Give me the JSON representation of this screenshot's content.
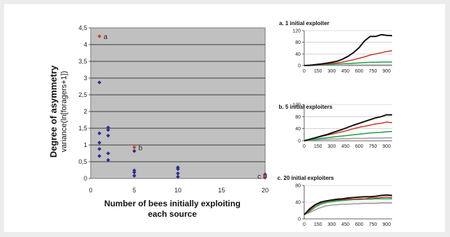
{
  "chart_data": [
    {
      "type": "scatter",
      "title": "",
      "ylabel": "Degree of asymmetry",
      "ylabel_sub": "variance(ln[foragers+1])",
      "xlabel_line1": "Number of bees initially exploiting",
      "xlabel_line2": "each source",
      "xlim": [
        0,
        20
      ],
      "ylim": [
        0,
        4.5
      ],
      "xticks": [
        "0",
        "5",
        "10",
        "15",
        "20"
      ],
      "yticks": [
        "0",
        "0,5",
        "1",
        "1,5",
        "2",
        "2,5",
        "3",
        "3,5",
        "4",
        "4,5"
      ],
      "grid": true,
      "background": "#c0c0c0",
      "colors": {
        "points": "#2b2b8f",
        "highlight": "#d0402a"
      },
      "points": [
        {
          "x": 1,
          "y": 2.87
        },
        {
          "x": 1,
          "y": 1.35
        },
        {
          "x": 1,
          "y": 1.07
        },
        {
          "x": 1,
          "y": 0.88
        },
        {
          "x": 1,
          "y": 0.67
        },
        {
          "x": 2,
          "y": 1.52
        },
        {
          "x": 2,
          "y": 1.45
        },
        {
          "x": 2,
          "y": 1.28
        },
        {
          "x": 2,
          "y": 0.75
        },
        {
          "x": 2,
          "y": 0.55
        },
        {
          "x": 5,
          "y": 0.82
        },
        {
          "x": 5,
          "y": 0.24
        },
        {
          "x": 5,
          "y": 0.18
        },
        {
          "x": 5,
          "y": 0.08
        },
        {
          "x": 10,
          "y": 0.33
        },
        {
          "x": 10,
          "y": 0.28
        },
        {
          "x": 10,
          "y": 0.15
        },
        {
          "x": 10,
          "y": 0.05
        },
        {
          "x": 20,
          "y": 0.12
        },
        {
          "x": 20,
          "y": 0.09
        },
        {
          "x": 20,
          "y": 0.05
        },
        {
          "x": 20,
          "y": 0.03
        }
      ],
      "highlighted": [
        {
          "x": 1,
          "y": 4.25,
          "label": "a"
        },
        {
          "x": 5,
          "y": 0.93,
          "label": "b"
        },
        {
          "x": 20,
          "y": 0.07,
          "label": "c"
        }
      ]
    },
    {
      "type": "line",
      "title": "a. 1 initial exploiter",
      "ylim": [
        0,
        120
      ],
      "yticks": [
        "0",
        "40",
        "80",
        "120"
      ],
      "xticks": [
        "0",
        "150",
        "300",
        "450",
        "600",
        "750",
        "900"
      ],
      "x": [
        0,
        60,
        120,
        180,
        240,
        300,
        360,
        420,
        480,
        540,
        600,
        660,
        720,
        780,
        840,
        900,
        960
      ],
      "series": [
        {
          "color": "#111111",
          "values": [
            0,
            1,
            3,
            5,
            8,
            11,
            15,
            22,
            32,
            45,
            62,
            85,
            100,
            100,
            106,
            104,
            103
          ]
        },
        {
          "color": "#c0392b",
          "values": [
            0,
            1,
            2,
            3,
            5,
            7,
            9,
            12,
            16,
            20,
            25,
            30,
            36,
            40,
            44,
            48,
            51
          ]
        },
        {
          "color": "#1e9e4a",
          "values": [
            0,
            0,
            1,
            2,
            3,
            4,
            5,
            6,
            7,
            8,
            9,
            10,
            11,
            11,
            12,
            12,
            12
          ]
        },
        {
          "color": "#9a9a9a",
          "values": [
            0,
            0,
            0,
            1,
            1,
            1,
            1,
            1,
            2,
            2,
            2,
            2,
            2,
            2,
            2,
            2,
            2
          ]
        }
      ]
    },
    {
      "type": "line",
      "title": "b. 5 initial exploiters",
      "ylim": [
        0,
        120
      ],
      "yticks": [
        "0",
        "40",
        "80",
        "120"
      ],
      "xticks": [
        "0",
        "150",
        "300",
        "450",
        "600",
        "750",
        "900"
      ],
      "x": [
        0,
        60,
        120,
        180,
        240,
        300,
        360,
        420,
        480,
        540,
        600,
        660,
        720,
        780,
        840,
        900,
        960
      ],
      "series": [
        {
          "color": "#111111",
          "values": [
            0,
            5,
            10,
            15,
            20,
            26,
            32,
            38,
            45,
            52,
            58,
            64,
            70,
            76,
            80,
            86,
            86
          ]
        },
        {
          "color": "#c0392b",
          "values": [
            0,
            5,
            10,
            14,
            18,
            22,
            26,
            30,
            35,
            40,
            45,
            48,
            52,
            56,
            58,
            62,
            60
          ]
        },
        {
          "color": "#1e9e4a",
          "values": [
            0,
            3,
            6,
            8,
            10,
            12,
            14,
            16,
            18,
            20,
            22,
            24,
            26,
            27,
            28,
            30,
            31
          ]
        },
        {
          "color": "#9a9a9a",
          "values": [
            0,
            2,
            3,
            4,
            5,
            6,
            6,
            7,
            7,
            8,
            8,
            8,
            9,
            9,
            9,
            10,
            10
          ]
        }
      ]
    },
    {
      "type": "line",
      "title": "c. 20 initial exploiters",
      "ylim": [
        0,
        80
      ],
      "yticks": [
        "0",
        "40",
        "80"
      ],
      "xticks": [
        "0",
        "150",
        "300",
        "450",
        "600",
        "750",
        "900"
      ],
      "x": [
        0,
        60,
        120,
        180,
        240,
        300,
        360,
        420,
        480,
        540,
        600,
        660,
        720,
        780,
        840,
        900,
        960
      ],
      "series": [
        {
          "color": "#111111",
          "values": [
            10,
            24,
            34,
            40,
            43,
            45,
            47,
            48,
            50,
            51,
            52,
            53,
            53,
            54,
            56,
            57,
            56
          ]
        },
        {
          "color": "#c0392b",
          "values": [
            10,
            21,
            32,
            38,
            42,
            44,
            45,
            46,
            47,
            47,
            48,
            48,
            50,
            50,
            51,
            52,
            51
          ]
        },
        {
          "color": "#1e9e4a",
          "values": [
            10,
            18,
            28,
            35,
            39,
            41,
            43,
            44,
            45,
            46,
            46,
            47,
            47,
            48,
            48,
            48,
            48
          ]
        },
        {
          "color": "#9a9a9a",
          "values": [
            10,
            15,
            22,
            27,
            31,
            33,
            34,
            35,
            35,
            36,
            36,
            37,
            37,
            37,
            38,
            38,
            38
          ]
        }
      ]
    }
  ]
}
